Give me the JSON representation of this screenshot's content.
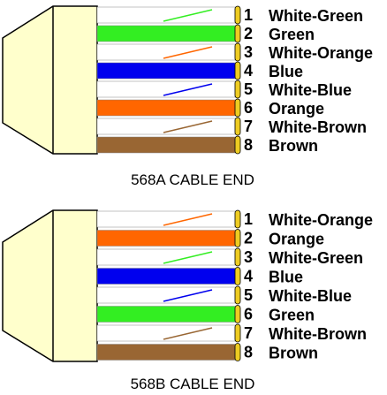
{
  "colors": {
    "white": "#ffffff",
    "green": "#33ee22",
    "orange": "#ff6600",
    "blue": "#0000ee",
    "brown": "#996633",
    "boot": "#ffffcc",
    "contact": "#eecc22"
  },
  "connectors": [
    {
      "id": "568a",
      "caption": "568A CABLE END",
      "pins": [
        {
          "num": "1",
          "label": "White-Green",
          "base": "white",
          "stripe": "green"
        },
        {
          "num": "2",
          "label": "Green",
          "base": "green",
          "stripe": null
        },
        {
          "num": "3",
          "label": "White-Orange",
          "base": "white",
          "stripe": "orange"
        },
        {
          "num": "4",
          "label": "Blue",
          "base": "blue",
          "stripe": null
        },
        {
          "num": "5",
          "label": "White-Blue",
          "base": "white",
          "stripe": "blue"
        },
        {
          "num": "6",
          "label": "Orange",
          "base": "orange",
          "stripe": null
        },
        {
          "num": "7",
          "label": "White-Brown",
          "base": "white",
          "stripe": "brown"
        },
        {
          "num": "8",
          "label": "Brown",
          "base": "brown",
          "stripe": null
        }
      ]
    },
    {
      "id": "568b",
      "caption": "568B CABLE END",
      "pins": [
        {
          "num": "1",
          "label": "White-Orange",
          "base": "white",
          "stripe": "orange"
        },
        {
          "num": "2",
          "label": "Orange",
          "base": "orange",
          "stripe": null
        },
        {
          "num": "3",
          "label": "White-Green",
          "base": "white",
          "stripe": "green"
        },
        {
          "num": "4",
          "label": "Blue",
          "base": "blue",
          "stripe": null
        },
        {
          "num": "5",
          "label": "White-Blue",
          "base": "white",
          "stripe": "blue"
        },
        {
          "num": "6",
          "label": "Green",
          "base": "green",
          "stripe": null
        },
        {
          "num": "7",
          "label": "White-Brown",
          "base": "white",
          "stripe": "brown"
        },
        {
          "num": "8",
          "label": "Brown",
          "base": "brown",
          "stripe": null
        }
      ]
    }
  ]
}
